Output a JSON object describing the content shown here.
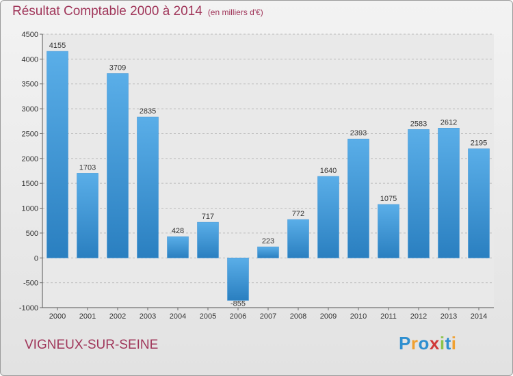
{
  "header": {
    "title": "Résultat Comptable 2000 à 2014",
    "subtitle": "(en milliers d'€)"
  },
  "footer": {
    "commune": "VIGNEUX-SUR-SEINE",
    "logo_text": "Proxiti",
    "logo_letters": [
      {
        "char": "P",
        "color": "#2e8fd0"
      },
      {
        "char": "r",
        "color": "#f0a030"
      },
      {
        "char": "o",
        "color": "#2e8fd0"
      },
      {
        "char": "x",
        "color": "#d03a3a"
      },
      {
        "char": "i",
        "color": "#8bc34a"
      },
      {
        "char": "t",
        "color": "#2e8fd0"
      },
      {
        "char": "i",
        "color": "#f0a030"
      }
    ]
  },
  "chart_data": {
    "type": "bar",
    "title": "Résultat Comptable 2000 à 2014",
    "subtitle": "(en milliers d'€)",
    "categories": [
      "2000",
      "2001",
      "2002",
      "2003",
      "2004",
      "2005",
      "2006",
      "2007",
      "2008",
      "2009",
      "2010",
      "2011",
      "2012",
      "2013",
      "2014"
    ],
    "values": [
      4155,
      1703,
      3709,
      2835,
      428,
      717,
      -855,
      223,
      772,
      1640,
      2393,
      1075,
      2583,
      2612,
      2195
    ],
    "ylim": [
      -1000,
      4500
    ],
    "yticks": [
      -1000,
      -500,
      0,
      500,
      1000,
      1500,
      2000,
      2500,
      3000,
      3500,
      4000,
      4500
    ],
    "grid": true,
    "colors": {
      "bar_top": "#5aaee8",
      "bar_bottom": "#2a7fc0",
      "grid": "#bbbbbb",
      "title": "#a0365a"
    }
  }
}
